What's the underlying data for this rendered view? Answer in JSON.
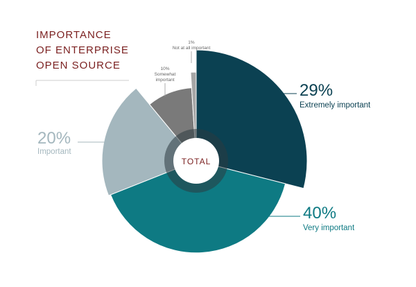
{
  "chart_data": {
    "type": "pie",
    "title": [
      "IMPORTANCE",
      "OF ENTERPRISE",
      "OPEN SOURCE"
    ],
    "center_label": "TOTAL",
    "slices": [
      {
        "label": "Extremely important",
        "value": 29,
        "value_text": "29%",
        "color": "#0b4152",
        "radius_scale": 1.0
      },
      {
        "label": "Very important",
        "value": 40,
        "value_text": "40%",
        "color": "#0e7a83",
        "radius_scale": 0.83
      },
      {
        "label": "Important",
        "value": 20,
        "value_text": "20%",
        "color": "#a4b7be",
        "radius_scale": 0.85
      },
      {
        "label": "Somewhat important",
        "value": 10,
        "value_text": "10%",
        "color": "#7a7a7a",
        "radius_scale": 0.66
      },
      {
        "label": "Not at all important",
        "value": 1,
        "value_text": "1%",
        "color": "#a6a6a6",
        "radius_scale": 0.8
      }
    ],
    "small_labels": [
      {
        "lines": [
          "1%",
          "Not at all important"
        ]
      },
      {
        "lines": [
          "10%",
          "Somewhat",
          "important"
        ]
      }
    ]
  },
  "colors": {
    "title": "#7a1f1f",
    "dark_text": "#0b4152",
    "teal_text": "#0e7a83",
    "light_text": "#a4b7be",
    "grey_text": "#666666"
  }
}
